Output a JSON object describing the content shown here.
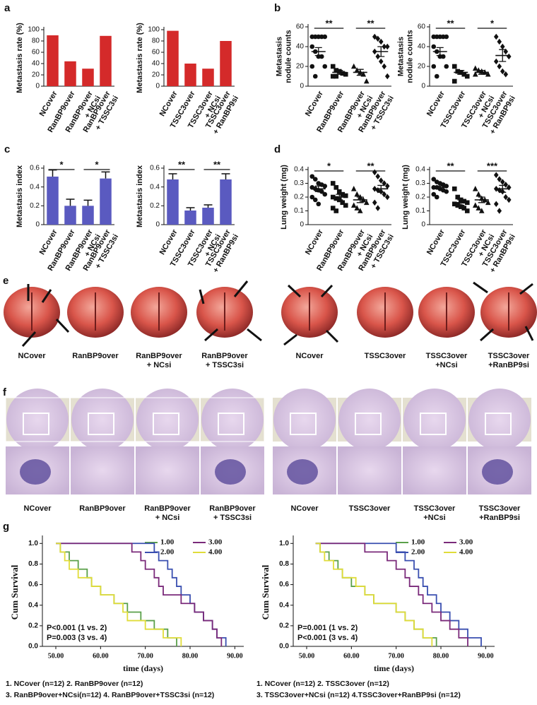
{
  "panels": [
    "a",
    "b",
    "c",
    "d",
    "e",
    "f",
    "g"
  ],
  "chart_data": [
    {
      "type": "bar",
      "ylabel": "Metastasis rate (%)",
      "color": "#d42a2a",
      "categories": [
        "NCover",
        "RanBP9over",
        "RanBP9over\n+ NCsi",
        "RanBP9over\n+ TSSC3si"
      ],
      "values": [
        90,
        44,
        31,
        89
      ],
      "ylim": [
        0,
        100
      ],
      "yticks": [
        0,
        20,
        40,
        60,
        80,
        100
      ]
    },
    {
      "type": "bar",
      "ylabel": "Metastasis rate (%)",
      "color": "#d42a2a",
      "categories": [
        "NCover",
        "TSSC3over",
        "TSSC3over\n+ NCsi",
        "TSSC3over\n+ RanBP9si"
      ],
      "values": [
        98,
        40,
        31,
        80
      ],
      "ylim": [
        0,
        100
      ],
      "yticks": [
        0,
        20,
        40,
        60,
        80,
        100
      ]
    },
    {
      "type": "dotplot",
      "ylabel": "Metastasis\nnodule counts",
      "markers": [
        "circle",
        "square",
        "triangle",
        "diamond"
      ],
      "categories": [
        "NCover",
        "RanBP9over",
        "RanBP9over\n+ NCsi",
        "RanBP9over\n+ TSSC3si"
      ],
      "points": [
        [
          50,
          50,
          50,
          50,
          50,
          40,
          35,
          30,
          30,
          20,
          20,
          10
        ],
        [
          20,
          16,
          15,
          13,
          12,
          10,
          10
        ],
        [
          20,
          16,
          14,
          12,
          5
        ],
        [
          50,
          48,
          45,
          40,
          40,
          35,
          30,
          25,
          20,
          10
        ]
      ],
      "values": [
        35,
        14,
        14,
        35
      ],
      "errors": [
        4,
        2,
        3,
        5
      ],
      "significance": [
        "**",
        "**"
      ],
      "ylim": [
        0,
        60
      ],
      "yticks": [
        0,
        20,
        40,
        60
      ]
    },
    {
      "type": "dotplot",
      "ylabel": "Metastasis\nnodule counts",
      "markers": [
        "circle",
        "square",
        "triangle",
        "diamond"
      ],
      "categories": [
        "NCover",
        "TSSC3over",
        "TSSC3over\n+ NCsi",
        "TSSC3over\n+ RanBP9si"
      ],
      "points": [
        [
          50,
          50,
          50,
          50,
          50,
          40,
          35,
          30,
          30,
          20,
          20,
          10
        ],
        [
          20,
          15,
          14,
          12,
          10,
          5
        ],
        [
          18,
          16,
          15,
          14,
          12,
          12
        ],
        [
          50,
          45,
          40,
          35,
          30,
          25,
          20,
          15,
          12
        ]
      ],
      "values": [
        35,
        14,
        14,
        31
      ],
      "errors": [
        4,
        2,
        2,
        6
      ],
      "significance": [
        "**",
        "*"
      ],
      "ylim": [
        0,
        60
      ],
      "yticks": [
        0,
        20,
        40,
        60
      ]
    },
    {
      "type": "bar",
      "ylabel": "Metastasis index",
      "color": "#5a5ac0",
      "categories": [
        "NCover",
        "RanBP9over",
        "RanBP9over\n+ NCsi",
        "RanBP9over\n+ TSSC3si"
      ],
      "values": [
        0.51,
        0.2,
        0.2,
        0.49
      ],
      "errors": [
        0.07,
        0.07,
        0.06,
        0.07
      ],
      "significance": [
        "*",
        "*"
      ],
      "ylim": [
        0,
        0.6
      ],
      "yticks": [
        0,
        0.2,
        0.4,
        0.6
      ]
    },
    {
      "type": "bar",
      "ylabel": "Metastasis index",
      "color": "#5a5ac0",
      "categories": [
        "NCover",
        "TSSC3over",
        "TSSC3over\n+ NCsi",
        "TSSC3over\n+ RanBP9si"
      ],
      "values": [
        0.48,
        0.15,
        0.18,
        0.48
      ],
      "errors": [
        0.06,
        0.03,
        0.03,
        0.06
      ],
      "significance": [
        "**",
        "**"
      ],
      "ylim": [
        0,
        0.6
      ],
      "yticks": [
        0,
        0.2,
        0.4,
        0.6
      ]
    },
    {
      "type": "dotplot",
      "ylabel": "Lung weight  (mg)",
      "markers": [
        "circle",
        "square",
        "triangle",
        "diamond"
      ],
      "categories": [
        "NCover",
        "RanBP9over",
        "RanBP9over\n+ NCsi",
        "RanBP9over\n+ TSSC3si"
      ],
      "points": [
        [
          0.35,
          0.33,
          0.3,
          0.29,
          0.28,
          0.27,
          0.26,
          0.25,
          0.24,
          0.22,
          0.2,
          0.18,
          0.15
        ],
        [
          0.3,
          0.27,
          0.24,
          0.22,
          0.21,
          0.2,
          0.19,
          0.18,
          0.16,
          0.14,
          0.12,
          0.1
        ],
        [
          0.26,
          0.22,
          0.2,
          0.18,
          0.16,
          0.14,
          0.12,
          0.1
        ],
        [
          0.38,
          0.35,
          0.32,
          0.3,
          0.28,
          0.26,
          0.25,
          0.24,
          0.22,
          0.2,
          0.16,
          0.12
        ]
      ],
      "values": [
        0.26,
        0.2,
        0.18,
        0.26
      ],
      "errors": [
        0.02,
        0.02,
        0.02,
        0.025
      ],
      "significance": [
        "*",
        "**"
      ],
      "ylim": [
        0,
        0.4
      ],
      "yticks": [
        0,
        0.1,
        0.2,
        0.3,
        0.4
      ]
    },
    {
      "type": "dotplot",
      "ylabel": "Lung weight  (mg)",
      "markers": [
        "circle",
        "square",
        "triangle",
        "diamond"
      ],
      "categories": [
        "NCover",
        "TSSC3over",
        "TSSC3over\n+ NCsi",
        "TSSC3over\n+ RanBP9si"
      ],
      "points": [
        [
          0.33,
          0.31,
          0.3,
          0.29,
          0.28,
          0.27,
          0.27,
          0.26,
          0.25,
          0.24,
          0.22,
          0.2
        ],
        [
          0.26,
          0.2,
          0.18,
          0.17,
          0.16,
          0.15,
          0.14,
          0.13,
          0.12,
          0.1
        ],
        [
          0.26,
          0.22,
          0.19,
          0.18,
          0.16,
          0.14,
          0.12,
          0.1
        ],
        [
          0.36,
          0.33,
          0.31,
          0.29,
          0.27,
          0.26,
          0.25,
          0.24,
          0.2,
          0.18,
          0.15,
          0.1
        ]
      ],
      "values": [
        0.27,
        0.16,
        0.18,
        0.26
      ],
      "errors": [
        0.01,
        0.02,
        0.02,
        0.025
      ],
      "significance": [
        "**",
        "***"
      ],
      "ylim": [
        0,
        0.4
      ],
      "yticks": [
        0,
        0.1,
        0.2,
        0.3,
        0.4
      ]
    },
    {
      "type": "survival",
      "xlabel": "time (days)",
      "ylabel": "Cum Survival",
      "xlim": [
        47,
        92
      ],
      "ylim": [
        0,
        1.05
      ],
      "xticks": [
        {
          "value": 50,
          "label": "50.00"
        },
        {
          "value": 60,
          "label": "60.00"
        },
        {
          "value": 70,
          "label": "70.00"
        },
        {
          "value": 80,
          "label": "80.00"
        },
        {
          "value": 90,
          "label": "90.00"
        }
      ],
      "yticks": [
        {
          "value": 0,
          "label": "0.0"
        },
        0.2,
        0.4,
        0.6,
        0.8,
        {
          "value": 1,
          "label": "1.0"
        }
      ],
      "series": [
        {
          "name": "1.00",
          "color": "#5aa04a",
          "x": [
            50,
            51,
            53,
            55,
            57,
            58,
            60,
            63,
            66,
            69,
            72,
            75,
            77
          ],
          "values": [
            1,
            0.917,
            0.833,
            0.75,
            0.667,
            0.583,
            0.5,
            0.417,
            0.333,
            0.25,
            0.167,
            0.083,
            0
          ]
        },
        {
          "name": "2.00",
          "color": "#3a4fb0",
          "x": [
            50,
            72,
            73,
            75,
            76,
            77,
            78,
            80,
            81,
            83,
            85,
            86,
            88
          ],
          "values": [
            1,
            0.917,
            0.833,
            0.75,
            0.667,
            0.583,
            0.5,
            0.417,
            0.333,
            0.25,
            0.167,
            0.083,
            0
          ]
        },
        {
          "name": "3.00",
          "color": "#7a2a7a",
          "x": [
            50,
            67,
            69,
            70,
            72,
            73,
            74,
            78,
            81,
            83,
            85,
            86,
            87
          ],
          "values": [
            1,
            0.917,
            0.833,
            0.75,
            0.667,
            0.583,
            0.5,
            0.417,
            0.333,
            0.25,
            0.167,
            0.083,
            0
          ]
        },
        {
          "name": "4.00",
          "color": "#e0dc3a",
          "x": [
            50,
            51,
            52,
            53,
            55,
            58,
            60,
            63,
            65,
            66,
            70,
            74,
            78
          ],
          "values": [
            1,
            0.917,
            0.833,
            0.75,
            0.667,
            0.583,
            0.5,
            0.417,
            0.333,
            0.25,
            0.167,
            0.083,
            0
          ]
        }
      ],
      "annotations": [
        "P<0.001 (1 vs. 2)",
        "P=0.003 (3 vs. 4)"
      ],
      "notes": [
        "1. NCover (n=12) 2. RanBP9over (n=12)",
        "3. RanBP9over+NCsi(n=12) 4. RanBP9over+TSSC3si (n=12)"
      ]
    },
    {
      "type": "survival",
      "xlabel": "time (days)",
      "ylabel": "Cum Survival",
      "xlim": [
        47,
        92
      ],
      "ylim": [
        0,
        1.05
      ],
      "xticks": [
        {
          "value": 50,
          "label": "50.00"
        },
        {
          "value": 60,
          "label": "60.00"
        },
        {
          "value": 70,
          "label": "70.00"
        },
        {
          "value": 80,
          "label": "80.00"
        },
        {
          "value": 90,
          "label": "90.00"
        }
      ],
      "yticks": [
        {
          "value": 0,
          "label": "0.0"
        },
        0.2,
        0.4,
        0.6,
        0.8,
        {
          "value": 1,
          "label": "1.0"
        }
      ],
      "series": [
        {
          "name": "1.00",
          "color": "#5aa04a",
          "x": [
            52,
            53,
            55,
            57,
            58,
            60,
            63,
            65,
            70,
            72,
            74,
            76,
            79
          ],
          "values": [
            1,
            0.917,
            0.833,
            0.75,
            0.667,
            0.583,
            0.5,
            0.417,
            0.333,
            0.25,
            0.167,
            0.083,
            0
          ]
        },
        {
          "name": "2.00",
          "color": "#3a4fb0",
          "x": [
            52,
            70,
            72,
            74,
            75,
            76,
            77,
            79,
            80,
            82,
            84,
            86,
            89
          ],
          "values": [
            1,
            0.917,
            0.833,
            0.75,
            0.667,
            0.583,
            0.5,
            0.417,
            0.333,
            0.25,
            0.167,
            0.083,
            0
          ]
        },
        {
          "name": "3.00",
          "color": "#7a2a7a",
          "x": [
            52,
            63,
            68,
            70,
            72,
            73,
            75,
            76,
            78,
            80,
            82,
            84,
            86
          ],
          "values": [
            1,
            0.917,
            0.833,
            0.75,
            0.667,
            0.583,
            0.5,
            0.417,
            0.333,
            0.25,
            0.167,
            0.083,
            0
          ]
        },
        {
          "name": "4.00",
          "color": "#e0dc3a",
          "x": [
            52,
            53,
            54,
            56,
            58,
            61,
            63,
            65,
            70,
            72,
            74,
            76,
            78
          ],
          "values": [
            1,
            0.917,
            0.833,
            0.75,
            0.667,
            0.583,
            0.5,
            0.417,
            0.333,
            0.25,
            0.167,
            0.083,
            0
          ]
        }
      ],
      "annotations": [
        "P=0.001 (1 vs. 2)",
        "P<0.001 (3 vs. 4)"
      ],
      "notes": [
        "1. NCover  (n=12) 2. TSSC3over (n=12)",
        "3. TSSC3over+NCsi (n=12) 4.TSSC3over+RanBP9si (n=12)"
      ]
    }
  ],
  "photos_e": {
    "labels": [
      "NCover",
      "RanBP9over",
      "RanBP9over\n+ NCsi",
      "RanBP9over\n+ TSSC3si",
      "NCover",
      "TSSC3over",
      "TSSC3over\n+NCsi",
      "TSSC3over\n+RanBP9si"
    ]
  },
  "histology_f": {
    "labels": [
      "NCover",
      "RanBP9over",
      "RanBP9over\n+ NCsi",
      "RanBP9over\n+ TSSC3si",
      "NCover",
      "TSSC3over",
      "TSSC3over\n+NCsi",
      "TSSC3over\n+RanBP9si"
    ]
  }
}
